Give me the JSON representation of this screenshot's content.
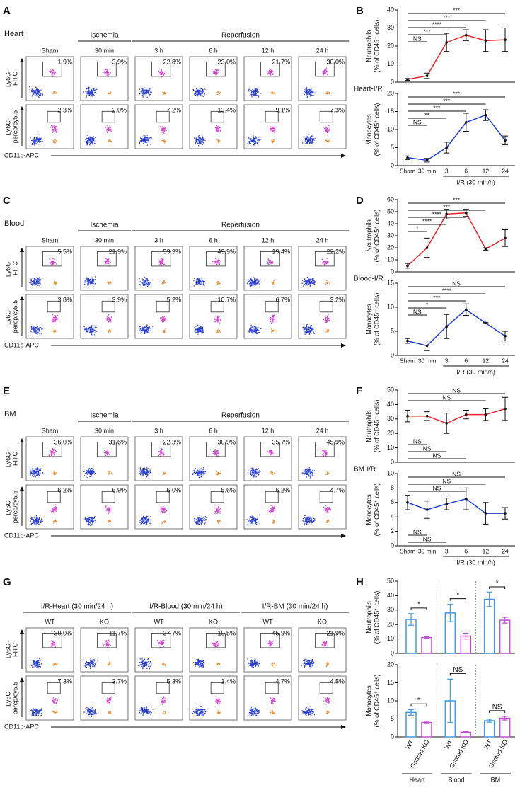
{
  "flow_panels": [
    {
      "letter": "A",
      "tissue": "Heart",
      "groups": [
        {
          "label": null,
          "columns": [
            "Sham"
          ]
        },
        {
          "label": "Ischemia",
          "columns": [
            "30 min"
          ]
        },
        {
          "label": "Reperfusion",
          "columns": [
            "3 h",
            "6 h",
            "12 h",
            "24 h"
          ]
        }
      ],
      "rows": [
        {
          "y_label": [
            "Ly6G-",
            "FITC"
          ],
          "percents": [
            "1.9%",
            "3.9%",
            "22.8%",
            "23.0%",
            "21.7%",
            "30.0%"
          ]
        },
        {
          "y_label": [
            "Ly6C-",
            "percp/cy5.5"
          ],
          "percents": [
            "2.3%",
            "2.0%",
            "7.2%",
            "13.4%",
            "9.1%",
            "7.3%"
          ]
        }
      ],
      "x_label": "CD11b-APC"
    },
    {
      "letter": "C",
      "tissue": "Blood",
      "groups": [
        {
          "label": null,
          "columns": [
            "Sham"
          ]
        },
        {
          "label": "Ischemia",
          "columns": [
            "30 min"
          ]
        },
        {
          "label": "Reperfusion",
          "columns": [
            "3 h",
            "6 h",
            "12 h",
            "24 h"
          ]
        }
      ],
      "rows": [
        {
          "y_label": [
            "Ly6G-",
            "FITC"
          ],
          "percents": [
            "5.5%",
            "21.9%",
            "53.9%",
            "49.9%",
            "19.4%",
            "22.2%"
          ]
        },
        {
          "y_label": [
            "Ly6C-",
            "percp/cy5.5"
          ],
          "percents": [
            "3.8%",
            "3.9%",
            "5.2%",
            "10.7%",
            "6.7%",
            "3.2%"
          ]
        }
      ],
      "x_label": "CD11b-APC"
    },
    {
      "letter": "E",
      "tissue": "BM",
      "groups": [
        {
          "label": null,
          "columns": [
            "Sham"
          ]
        },
        {
          "label": "Ischemia",
          "columns": [
            "30 min"
          ]
        },
        {
          "label": "Reperfusion",
          "columns": [
            "3 h",
            "6 h",
            "12 h",
            "24 h"
          ]
        }
      ],
      "rows": [
        {
          "y_label": [
            "Ly6G-",
            "FITC"
          ],
          "percents": [
            "36.0%",
            "31.6%",
            "22.3%",
            "30.9%",
            "35.7%",
            "45.9%"
          ]
        },
        {
          "y_label": [
            "Ly6C-",
            "percp/cy5.5"
          ],
          "percents": [
            "6.2%",
            "6.9%",
            "6.0%",
            "5.6%",
            "6.2%",
            "4.7%"
          ]
        }
      ],
      "x_label": "CD11b-APC"
    },
    {
      "letter": "G",
      "groups": [
        {
          "label": "I/R-Heart (30 min/24 h)",
          "columns": [
            "WT",
            "KO"
          ]
        },
        {
          "label": "I/R-Blood (30 min/24 h)",
          "columns": [
            "WT",
            "KO"
          ]
        },
        {
          "label": "I/R-BM (30 min/24 h)",
          "columns": [
            "WT",
            "KO"
          ]
        }
      ],
      "rows": [
        {
          "y_label": [
            "Ly6G-",
            "FITC"
          ],
          "percents": [
            "30.0%",
            "11.7%",
            "37.7%",
            "10.5%",
            "45.9%",
            "21.9%"
          ]
        },
        {
          "y_label": [
            "Ly6C-",
            "percp/cy5.5"
          ],
          "percents": [
            "7.3%",
            "3.7%",
            "5.3%",
            "1.4%",
            "4.7%",
            "4.5%"
          ]
        }
      ],
      "x_label": "CD11b-APC"
    }
  ],
  "chart_data": [
    {
      "letter": "B",
      "type": "line",
      "label": "Heart-I/R",
      "categories": [
        "Sham",
        "30 min",
        "3",
        "6",
        "12",
        "24"
      ],
      "x_title": "I/R (30 min/h)",
      "subplots": [
        {
          "y_title": [
            "Neutrophils",
            "(% of CD45⁺ cells)"
          ],
          "color": "#e8262a",
          "values": [
            1.5,
            3.5,
            22,
            26,
            23,
            23.5
          ],
          "errors": [
            0.5,
            1.5,
            5,
            3,
            6,
            6.5
          ],
          "ylim": [
            0,
            40
          ],
          "yticks": [
            0,
            10,
            20,
            30,
            40
          ],
          "brackets": [
            {
              "label": "***",
              "from": "Sham",
              "to": "24"
            },
            {
              "label": "***",
              "from": "Sham",
              "to": "12"
            },
            {
              "label": "****",
              "from": "Sham",
              "to": "6"
            },
            {
              "label": "***",
              "from": "Sham",
              "to": "3"
            },
            {
              "label": "NS",
              "from": "Sham",
              "to": "30 min"
            }
          ]
        },
        {
          "y_title": [
            "Monocytes",
            "(% of CD45⁺ cells)"
          ],
          "color": "#1f3fd8",
          "values": [
            2.2,
            1.5,
            5,
            12,
            14,
            7
          ],
          "errors": [
            0.5,
            0.5,
            1.5,
            2.5,
            1.5,
            1.2
          ],
          "ylim": [
            0,
            20
          ],
          "yticks": [
            0,
            5,
            10,
            15,
            20
          ],
          "brackets": [
            {
              "label": "***",
              "from": "Sham",
              "to": "24"
            },
            {
              "label": "***",
              "from": "Sham",
              "to": "12"
            },
            {
              "label": "***",
              "from": "Sham",
              "to": "6"
            },
            {
              "label": "**",
              "from": "Sham",
              "to": "3"
            },
            {
              "label": "NS",
              "from": "Sham",
              "to": "30 min"
            }
          ]
        }
      ]
    },
    {
      "letter": "D",
      "type": "line",
      "label": "Blood-I/R",
      "categories": [
        "Sham",
        "30 min",
        "3",
        "6",
        "12",
        "24"
      ],
      "x_title": "I/R (30 min/h)",
      "subplots": [
        {
          "y_title": [
            "Neutrophils",
            "(% of CD45⁺ cells)"
          ],
          "color": "#e8262a",
          "values": [
            5,
            20,
            48,
            49,
            19,
            28
          ],
          "errors": [
            2,
            8,
            4,
            3,
            1,
            7
          ],
          "ylim": [
            0,
            60
          ],
          "yticks": [
            0,
            10,
            20,
            30,
            40,
            50,
            60
          ],
          "brackets": [
            {
              "label": "***",
              "from": "Sham",
              "to": "24"
            },
            {
              "label": "***",
              "from": "Sham",
              "to": "12"
            },
            {
              "label": "****",
              "from": "Sham",
              "to": "6"
            },
            {
              "label": "****",
              "from": "Sham",
              "to": "3"
            },
            {
              "label": "*",
              "from": "Sham",
              "to": "30 min"
            }
          ]
        },
        {
          "y_title": [
            "Monocytes",
            "(% of CD45⁺ cells)"
          ],
          "color": "#1f3fd8",
          "values": [
            3,
            2,
            6,
            9.5,
            6.7,
            4
          ],
          "errors": [
            0.5,
            1,
            2.5,
            1.2,
            0.1,
            1
          ],
          "ylim": [
            0,
            15
          ],
          "yticks": [
            0,
            5,
            10,
            15
          ],
          "brackets": [
            {
              "label": "NS",
              "from": "Sham",
              "to": "24"
            },
            {
              "label": "****",
              "from": "Sham",
              "to": "12"
            },
            {
              "label": "***",
              "from": "Sham",
              "to": "6"
            },
            {
              "label": "*",
              "from": "Sham",
              "to": "3"
            },
            {
              "label": "NS",
              "from": "Sham",
              "to": "30 min"
            }
          ]
        }
      ]
    },
    {
      "letter": "F",
      "type": "line",
      "label": "BM-I/R",
      "categories": [
        "Sham",
        "30 min",
        "3",
        "6",
        "12",
        "24"
      ],
      "x_title": "I/R (30 min/h)",
      "subplots": [
        {
          "y_title": [
            "Neutrophils",
            "(% of CD45⁺ cells)"
          ],
          "color": "#e8262a",
          "values": [
            32,
            32,
            27,
            33,
            33,
            37
          ],
          "errors": [
            4,
            3,
            7,
            3,
            4,
            8
          ],
          "ylim": [
            0,
            50
          ],
          "yticks": [
            0,
            10,
            20,
            30,
            40,
            50
          ],
          "brackets": [
            {
              "label": "NS",
              "from": "Sham",
              "to": "24"
            },
            {
              "label": "NS",
              "from": "Sham",
              "to": "12"
            },
            {
              "label": "NS",
              "from": "Sham",
              "to": "6",
              "below": true
            },
            {
              "label": "NS",
              "from": "Sham",
              "to": "3",
              "below": true
            },
            {
              "label": "NS",
              "from": "Sham",
              "to": "30 min",
              "below": true
            }
          ]
        },
        {
          "y_title": [
            "Monocytes",
            "(% of CD45⁺ cells)"
          ],
          "color": "#1f3fd8",
          "values": [
            6,
            5,
            5.8,
            6.5,
            4.5,
            4.5
          ],
          "errors": [
            1,
            1.2,
            0.8,
            1.5,
            1.5,
            0.8
          ],
          "ylim": [
            0,
            10
          ],
          "yticks": [
            0,
            2,
            4,
            6,
            8,
            10
          ],
          "brackets": [
            {
              "label": "NS",
              "from": "Sham",
              "to": "24"
            },
            {
              "label": "NS",
              "from": "Sham",
              "to": "12"
            },
            {
              "label": "NS",
              "from": "Sham",
              "to": "6"
            },
            {
              "label": "NS",
              "from": "Sham",
              "to": "3",
              "below": true
            },
            {
              "label": "NS",
              "from": "Sham",
              "to": "30 min",
              "below": true
            }
          ]
        }
      ]
    },
    {
      "letter": "H",
      "type": "bar",
      "categories": [
        "Heart",
        "Blood",
        "BM"
      ],
      "series": [
        {
          "name": "WT",
          "color": "#3d9be6"
        },
        {
          "name": "Gsdmd KO",
          "color": "#c24fd6"
        }
      ],
      "subplots": [
        {
          "y_title": [
            "Neutrophils",
            "(% of CD45⁺ cells)"
          ],
          "ylim": [
            0,
            50
          ],
          "yticks": [
            0,
            10,
            20,
            30,
            40,
            50
          ],
          "data": [
            {
              "values": [
                23.5,
                28,
                37.5
              ],
              "errors": [
                4,
                6,
                5
              ]
            },
            {
              "values": [
                11,
                12,
                23
              ],
              "errors": [
                0.5,
                2,
                2
              ]
            }
          ],
          "brackets": [
            "*",
            "*",
            "*"
          ]
        },
        {
          "y_title": [
            "Monocytes",
            "(% of CD45⁺ cells)"
          ],
          "ylim": [
            0,
            20
          ],
          "yticks": [
            0,
            5,
            10,
            15,
            20
          ],
          "data": [
            {
              "values": [
                6.8,
                10,
                4.5
              ],
              "errors": [
                0.8,
                6,
                0.4
              ]
            },
            {
              "values": [
                4,
                1.3,
                5.2
              ],
              "errors": [
                0.3,
                0.2,
                0.5
              ]
            }
          ],
          "brackets": [
            "*",
            "NS",
            "NS"
          ]
        }
      ]
    }
  ]
}
